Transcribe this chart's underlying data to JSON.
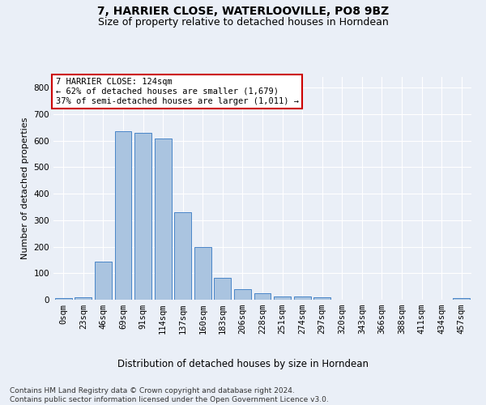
{
  "title1": "7, HARRIER CLOSE, WATERLOOVILLE, PO8 9BZ",
  "title2": "Size of property relative to detached houses in Horndean",
  "xlabel": "Distribution of detached houses by size in Horndean",
  "ylabel": "Number of detached properties",
  "bar_labels": [
    "0sqm",
    "23sqm",
    "46sqm",
    "69sqm",
    "91sqm",
    "114sqm",
    "137sqm",
    "160sqm",
    "183sqm",
    "206sqm",
    "228sqm",
    "251sqm",
    "274sqm",
    "297sqm",
    "320sqm",
    "343sqm",
    "366sqm",
    "388sqm",
    "411sqm",
    "434sqm",
    "457sqm"
  ],
  "bar_values": [
    5,
    8,
    143,
    635,
    630,
    608,
    330,
    200,
    83,
    40,
    25,
    11,
    12,
    10,
    0,
    0,
    0,
    0,
    0,
    0,
    5
  ],
  "bar_color": "#aac4e0",
  "bar_edge_color": "#4a86c8",
  "background_color": "#eaeff7",
  "axes_bg_color": "#eaeff7",
  "grid_color": "#ffffff",
  "annotation_text": "7 HARRIER CLOSE: 124sqm\n← 62% of detached houses are smaller (1,679)\n37% of semi-detached houses are larger (1,011) →",
  "annotation_box_color": "#ffffff",
  "annotation_box_edge": "#cc0000",
  "ylim": [
    0,
    840
  ],
  "yticks": [
    0,
    100,
    200,
    300,
    400,
    500,
    600,
    700,
    800
  ],
  "footnote": "Contains HM Land Registry data © Crown copyright and database right 2024.\nContains public sector information licensed under the Open Government Licence v3.0.",
  "title1_fontsize": 10,
  "title2_fontsize": 9,
  "xlabel_fontsize": 8.5,
  "ylabel_fontsize": 8,
  "tick_fontsize": 7.5,
  "annotation_fontsize": 7.5,
  "footnote_fontsize": 6.5
}
